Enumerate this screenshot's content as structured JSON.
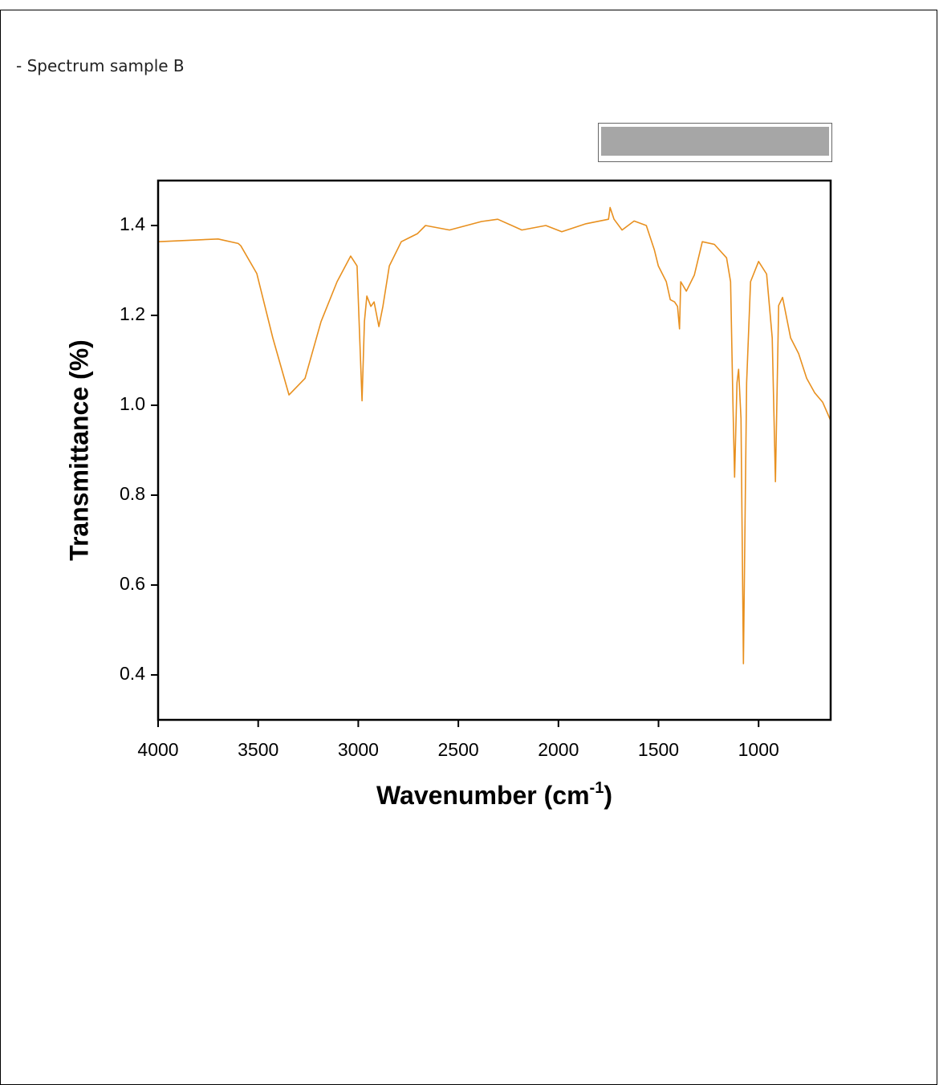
{
  "caption": "- Spectrum sample B",
  "chart_data": {
    "type": "line",
    "x_label": {
      "text": "Wavenumber (cm",
      "sup": "-1",
      "end": ")"
    },
    "y_label": "Transmittance (%)",
    "xlim": [
      4000,
      640
    ],
    "ylim": [
      0.3,
      1.5
    ],
    "xticks": [
      4000,
      3500,
      3000,
      2500,
      2000,
      1500,
      1000
    ],
    "yticks": [
      0.4,
      0.6,
      0.8,
      {
        "value": 1.0,
        "label": "1.0"
      },
      1.2,
      1.4
    ],
    "color": "#e8901f",
    "x": [
      4000,
      3800,
      3700,
      3600,
      3587,
      3507,
      3427,
      3346,
      3266,
      3186,
      3106,
      3038,
      3006,
      2993,
      2981,
      2969,
      2957,
      2937,
      2921,
      2897,
      2877,
      2845,
      2785,
      2704,
      2664,
      2544,
      2384,
      2303,
      2183,
      2063,
      1983,
      1862,
      1750,
      1742,
      1722,
      1682,
      1622,
      1561,
      1521,
      1501,
      1461,
      1441,
      1420,
      1405,
      1395,
      1389,
      1361,
      1321,
      1281,
      1221,
      1160,
      1140,
      1128,
      1120,
      1108,
      1100,
      1088,
      1076,
      1060,
      1040,
      1000,
      960,
      932,
      916,
      900,
      880,
      840,
      800,
      760,
      720,
      680,
      640
    ],
    "y": [
      1.364,
      1.368,
      1.37,
      1.36,
      1.355,
      1.293,
      1.15,
      1.023,
      1.06,
      1.186,
      1.275,
      1.332,
      1.31,
      1.15,
      1.01,
      1.187,
      1.243,
      1.22,
      1.23,
      1.175,
      1.22,
      1.31,
      1.364,
      1.382,
      1.4,
      1.39,
      1.409,
      1.414,
      1.39,
      1.4,
      1.386,
      1.404,
      1.414,
      1.44,
      1.414,
      1.39,
      1.41,
      1.4,
      1.346,
      1.31,
      1.275,
      1.235,
      1.23,
      1.22,
      1.17,
      1.275,
      1.254,
      1.29,
      1.364,
      1.358,
      1.328,
      1.275,
      1.0,
      0.84,
      1.05,
      1.08,
      0.97,
      0.425,
      1.05,
      1.275,
      1.32,
      1.292,
      1.15,
      0.83,
      1.222,
      1.24,
      1.15,
      1.115,
      1.06,
      1.028,
      1.007,
      0.966
    ]
  }
}
